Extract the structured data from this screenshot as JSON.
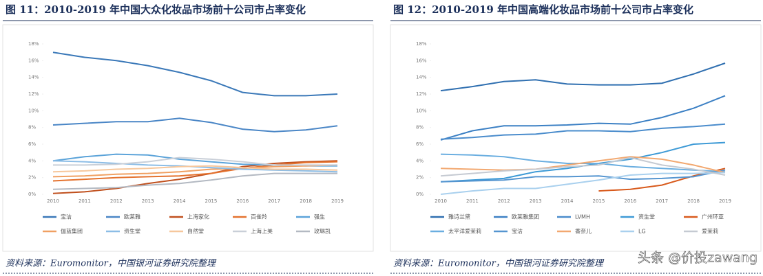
{
  "chart_data": [
    {
      "type": "line",
      "title": "图 11：2010-2019 年中国大众化妆品市场前十公司市占率变化",
      "source": "资料来源：Euromonitor，中国银河证券研究院整理",
      "categories": [
        "2010",
        "2011",
        "2012",
        "2013",
        "2014",
        "2015",
        "2016",
        "2017",
        "2018",
        "2019"
      ],
      "ylim": [
        0,
        18
      ],
      "yticks": [
        {
          "value": 0,
          "label": "0%"
        },
        {
          "value": 2,
          "label": "2%"
        },
        {
          "value": 4,
          "label": "4%"
        },
        {
          "value": 6,
          "label": "6%"
        },
        {
          "value": 8,
          "label": "8%"
        },
        {
          "value": 10,
          "label": "10%"
        },
        {
          "value": 12,
          "label": "12%"
        },
        {
          "value": 14,
          "label": "14%"
        },
        {
          "value": 16,
          "label": "16%"
        },
        {
          "value": 18,
          "label": "18%"
        }
      ],
      "series": [
        {
          "name": "宝洁",
          "color": "#3a78b8",
          "values": [
            17.0,
            16.4,
            16.0,
            15.4,
            14.6,
            13.6,
            12.2,
            11.8,
            11.8,
            12.0
          ]
        },
        {
          "name": "欧莱雅",
          "color": "#4a86c6",
          "values": [
            8.3,
            8.5,
            8.7,
            8.7,
            9.1,
            8.6,
            7.8,
            7.5,
            7.7,
            8.2
          ]
        },
        {
          "name": "上海家化",
          "color": "#c0501e",
          "values": [
            0.1,
            0.3,
            0.7,
            1.3,
            1.8,
            2.5,
            3.3,
            3.7,
            3.9,
            4.0
          ]
        },
        {
          "name": "百雀羚",
          "color": "#e4722e",
          "values": [
            1.6,
            1.8,
            2.0,
            2.1,
            2.2,
            2.5,
            3.1,
            3.5,
            3.8,
            3.9
          ]
        },
        {
          "name": "强生",
          "color": "#5ba3d9",
          "values": [
            4.0,
            4.5,
            4.8,
            4.7,
            4.2,
            3.9,
            3.6,
            3.5,
            3.4,
            3.4
          ]
        },
        {
          "name": "伽蓝集团",
          "color": "#f0a062",
          "values": [
            2.1,
            2.2,
            2.4,
            2.5,
            2.7,
            3.0,
            3.1,
            3.3,
            3.4,
            3.5
          ]
        },
        {
          "name": "资生堂",
          "color": "#8cbde6",
          "values": [
            4.0,
            3.9,
            3.7,
            3.5,
            3.4,
            3.2,
            3.0,
            2.9,
            2.8,
            2.7
          ]
        },
        {
          "name": "自然堂",
          "color": "#f6c79c",
          "values": [
            2.7,
            2.8,
            3.0,
            3.1,
            3.3,
            3.4,
            3.2,
            3.0,
            3.0,
            2.9
          ]
        },
        {
          "name": "上海上美",
          "color": "#c9cfd8",
          "values": [
            3.5,
            3.5,
            3.6,
            3.9,
            4.4,
            4.2,
            3.9,
            3.5,
            3.5,
            3.5
          ]
        },
        {
          "name": "玫琳凯",
          "color": "#b3b9c2",
          "values": [
            0.6,
            0.7,
            0.8,
            1.1,
            1.3,
            1.7,
            2.2,
            2.5,
            2.5,
            2.5
          ]
        }
      ]
    },
    {
      "type": "line",
      "title": "图 12：2010-2019 年中国高端化妆品市场前十公司市占率变化",
      "source": "资料来源：Euromonitor，中国银河证券研究院整理",
      "watermark": "头条 @价投zawang",
      "categories": [
        "2010",
        "2011",
        "2012",
        "2013",
        "2014",
        "2015",
        "2016",
        "2017",
        "2018",
        "2019"
      ],
      "ylim": [
        0,
        18
      ],
      "yticks": [
        {
          "value": 0,
          "label": "0%"
        },
        {
          "value": 2,
          "label": "2%"
        },
        {
          "value": 4,
          "label": "4%"
        },
        {
          "value": 6,
          "label": "6%"
        },
        {
          "value": 8,
          "label": "8%"
        },
        {
          "value": 10,
          "label": "10%"
        },
        {
          "value": 12,
          "label": "12%"
        },
        {
          "value": 14,
          "label": "14%"
        },
        {
          "value": 16,
          "label": "16%"
        },
        {
          "value": 18,
          "label": "18%"
        }
      ],
      "series": [
        {
          "name": "雅诗兰黛",
          "color": "#2f6fb0",
          "values": [
            12.4,
            12.9,
            13.5,
            13.7,
            13.2,
            13.1,
            13.1,
            13.3,
            14.4,
            15.7
          ]
        },
        {
          "name": "欧莱雅集团",
          "color": "#3c80c4",
          "values": [
            6.5,
            7.6,
            8.2,
            8.2,
            8.3,
            8.5,
            8.4,
            9.2,
            10.3,
            11.8
          ]
        },
        {
          "name": "LVMH",
          "color": "#4a8ccc",
          "values": [
            6.6,
            6.8,
            7.1,
            7.2,
            7.6,
            7.6,
            7.5,
            7.9,
            8.1,
            8.4
          ]
        },
        {
          "name": "资生堂",
          "color": "#3d9ad6",
          "values": [
            1.5,
            1.7,
            1.9,
            2.7,
            3.1,
            3.7,
            4.2,
            5.0,
            6.0,
            6.2
          ]
        },
        {
          "name": "广州环亚",
          "color": "#d85a1c",
          "values": [
            null,
            null,
            null,
            null,
            null,
            0.4,
            0.6,
            1.1,
            2.2,
            3.1
          ]
        },
        {
          "name": "太平洋爱茉莉",
          "color": "#6aaee0",
          "values": [
            4.8,
            4.7,
            4.5,
            4.0,
            3.7,
            3.7,
            3.3,
            3.1,
            2.9,
            2.7
          ]
        },
        {
          "name": "宝洁",
          "color": "#5595d0",
          "values": [
            1.5,
            1.6,
            1.7,
            2.1,
            2.1,
            2.2,
            1.8,
            1.9,
            2.1,
            2.9
          ]
        },
        {
          "name": "香奈儿",
          "color": "#f2a870",
          "values": [
            3.1,
            3.0,
            2.9,
            3.0,
            3.5,
            4.0,
            4.5,
            4.2,
            3.5,
            2.6
          ]
        },
        {
          "name": "LG",
          "color": "#a9d0ee",
          "values": [
            0,
            0.4,
            0.7,
            0.7,
            1.2,
            1.7,
            2.3,
            2.5,
            2.5,
            2.6
          ]
        },
        {
          "name": "爱茉莉",
          "color": "#c5cad2",
          "values": [
            2.2,
            2.5,
            2.8,
            3.0,
            3.3,
            3.5,
            4.4,
            3.5,
            3.0,
            2.3
          ]
        }
      ]
    }
  ]
}
